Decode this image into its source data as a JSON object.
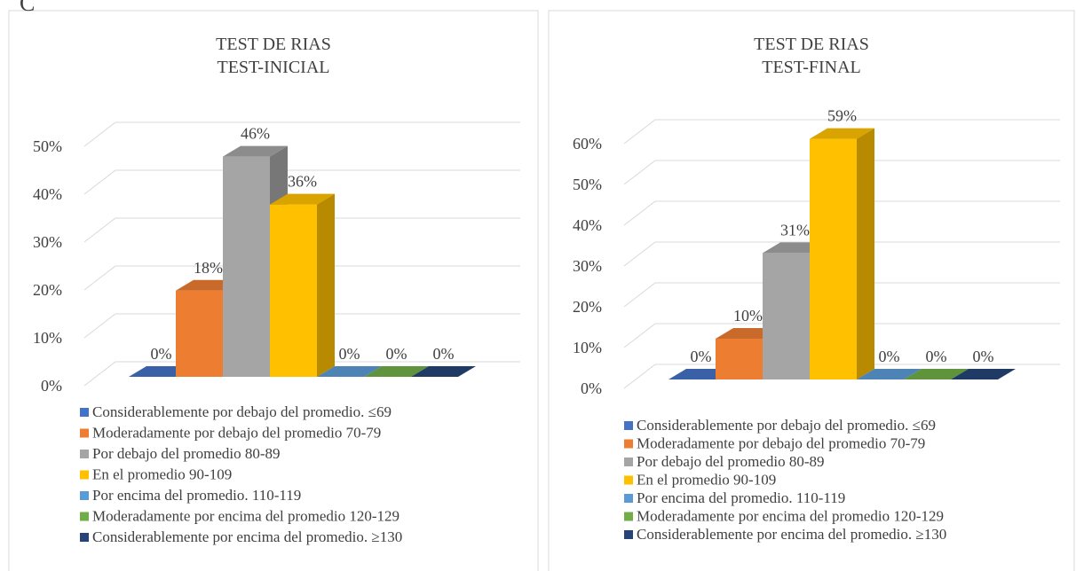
{
  "label": "C",
  "chart_data": [
    {
      "type": "bar",
      "title": "TEST DE RIAS",
      "subtitle": "TEST-INICIAL",
      "categories": [
        "Considerablemente por debajo del promedio. ≤69",
        "Moderadamente por debajo del promedio 70-79",
        "Por debajo del promedio 80-89",
        "En el promedio 90-109",
        "Por encima del promedio. 110-119",
        "Moderadamente por encima del promedio 120-129",
        "Considerablemente por encima del promedio. ≥130"
      ],
      "values": [
        0,
        18,
        46,
        36,
        0,
        0,
        0
      ],
      "value_labels": [
        "0%",
        "18%",
        "46%",
        "36%",
        "0%",
        "0%",
        "0%"
      ],
      "colors": [
        "#4472c4",
        "#ed7d31",
        "#a5a5a5",
        "#ffc000",
        "#5b9bd5",
        "#70ad47",
        "#264478"
      ],
      "ylim": [
        0,
        50
      ],
      "yticks": [
        {
          "value": 0,
          "label": "0%"
        },
        {
          "value": 10,
          "label": "10%"
        },
        {
          "value": 20,
          "label": "20%"
        },
        {
          "value": 30,
          "label": "30%"
        },
        {
          "value": 40,
          "label": "40%"
        },
        {
          "value": 50,
          "label": "50%"
        }
      ],
      "grid": true,
      "legend": "bottom"
    },
    {
      "type": "bar",
      "title": "TEST DE RIAS",
      "subtitle": "TEST-FINAL",
      "categories": [
        "Considerablemente por debajo del promedio. ≤69",
        "Moderadamente por debajo del promedio 70-79",
        "Por debajo del promedio 80-89",
        "En el promedio 90-109",
        "Por encima del promedio. 110-119",
        "Moderadamente por encima del promedio 120-129",
        "Considerablemente por encima del promedio. ≥130"
      ],
      "values": [
        0,
        10,
        31,
        59,
        0,
        0,
        0
      ],
      "value_labels": [
        "0%",
        "10%",
        "31%",
        "59%",
        "0%",
        "0%",
        "0%"
      ],
      "colors": [
        "#4472c4",
        "#ed7d31",
        "#a5a5a5",
        "#ffc000",
        "#5b9bd5",
        "#70ad47",
        "#264478"
      ],
      "ylim": [
        0,
        60
      ],
      "yticks": [
        {
          "value": 0,
          "label": "0%"
        },
        {
          "value": 10,
          "label": "10%"
        },
        {
          "value": 20,
          "label": "20%"
        },
        {
          "value": 30,
          "label": "30%"
        },
        {
          "value": 40,
          "label": "40%"
        },
        {
          "value": 50,
          "label": "50%"
        },
        {
          "value": 60,
          "label": "60%"
        }
      ],
      "grid": true,
      "legend": "bottom"
    }
  ]
}
